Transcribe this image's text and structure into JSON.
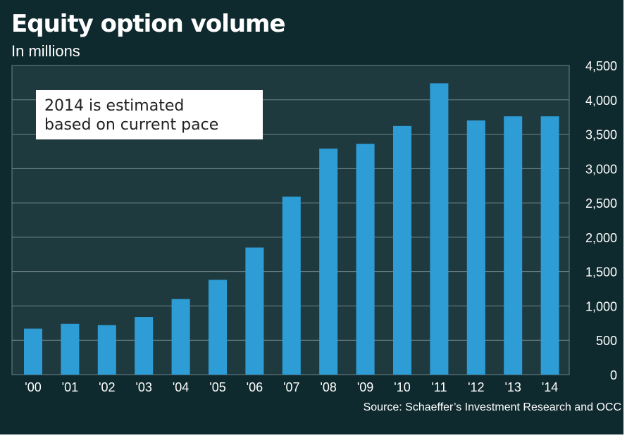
{
  "colors": {
    "background": "#0f2a2e",
    "plot_area": "#1e3a3f",
    "bar": "#2e9dd6",
    "grid": "#6f8488",
    "text": "#ffffff"
  },
  "chart_data": {
    "type": "bar",
    "title": "Equity option volume",
    "subtitle": "In millions",
    "annotation": [
      "2014 is estimated",
      "based on current pace"
    ],
    "source": "Source: Schaeffer’s Investment Research and OCC",
    "categories": [
      "'00",
      "'01",
      "'02",
      "'03",
      "'04",
      "'05",
      "'06",
      "'07",
      "'08",
      "'09",
      "'10",
      "'11",
      "'12",
      "'13",
      "'14"
    ],
    "values": [
      670,
      740,
      720,
      840,
      1100,
      1380,
      1850,
      2590,
      3290,
      3360,
      3620,
      4240,
      3700,
      3760,
      3760
    ],
    "ylim": [
      0,
      4500
    ],
    "yticks": [
      0,
      500,
      1000,
      1500,
      2000,
      2500,
      3000,
      3500,
      4000,
      4500
    ],
    "ytick_labels": [
      "0",
      "500",
      "1,000",
      "1,500",
      "2,000",
      "2,500",
      "3,000",
      "3,500",
      "4,000",
      "4,500"
    ],
    "y_axis_position": "right",
    "grid": true,
    "xlabel": "",
    "ylabel": ""
  }
}
